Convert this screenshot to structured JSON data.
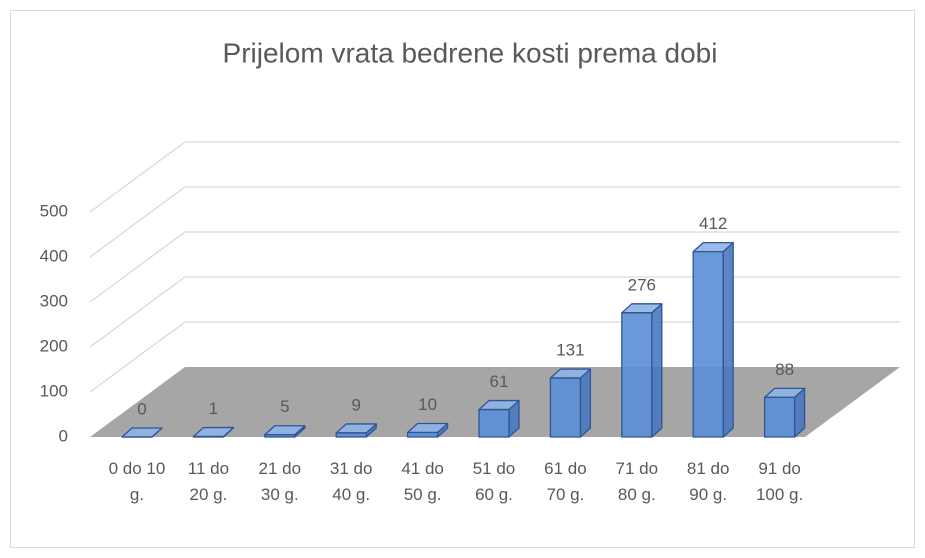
{
  "chart_data": {
    "type": "bar3d",
    "title": "Prijelom vrata bedrene kosti prema dobi",
    "categories": [
      "0 do 10 g.",
      "11 do 20 g.",
      "21 do 30 g.",
      "31 do 40 g.",
      "41 do 50 g.",
      "51 do 60 g.",
      "61 do 70 g.",
      "71 do 80 g.",
      "81 do 90 g.",
      "91 do 100 g."
    ],
    "values": [
      0,
      1,
      5,
      9,
      10,
      61,
      131,
      276,
      412,
      88
    ],
    "color": "#5b8fd6",
    "ylim": [
      0,
      500
    ],
    "yticks": [
      0,
      100,
      200,
      300,
      400,
      500
    ],
    "grid": true,
    "data_labels": true
  }
}
